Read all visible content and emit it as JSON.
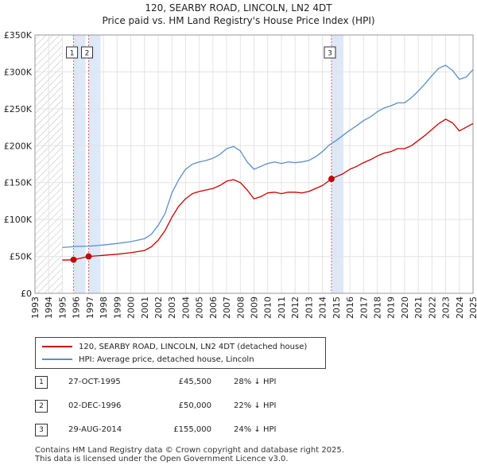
{
  "chart_data": {
    "type": "line",
    "title": "120, SEARBY ROAD, LINCOLN, LN2 4DT",
    "subtitle": "Price paid vs. HM Land Registry's House Price Index (HPI)",
    "x_range": [
      1993,
      2025
    ],
    "ylim": [
      0,
      350000
    ],
    "y_ticks": [
      0,
      50000,
      100000,
      150000,
      200000,
      250000,
      300000,
      350000
    ],
    "y_tick_labels": [
      "£0",
      "£50K",
      "£100K",
      "£150K",
      "£200K",
      "£250K",
      "£300K",
      "£350K"
    ],
    "x_ticks": [
      1993,
      1994,
      1995,
      1996,
      1997,
      1998,
      1999,
      2000,
      2001,
      2002,
      2003,
      2004,
      2005,
      2006,
      2007,
      2008,
      2009,
      2010,
      2011,
      2012,
      2013,
      2014,
      2015,
      2016,
      2017,
      2018,
      2019,
      2020,
      2021,
      2022,
      2023,
      2024,
      2025
    ],
    "grid": true,
    "hatched_before": 1995.0,
    "series": [
      {
        "name": "120, SEARBY ROAD, LINCOLN, LN2 4DT (detached house)",
        "color": "#cc0000",
        "x": [
          1995.0,
          1995.82,
          1996.92,
          1998.0,
          1999.0,
          2000.0,
          2001.0,
          2001.5,
          2002.0,
          2002.5,
          2003.0,
          2003.5,
          2004.0,
          2004.5,
          2005.0,
          2005.5,
          2006.0,
          2006.5,
          2007.0,
          2007.5,
          2008.0,
          2008.5,
          2009.0,
          2009.5,
          2010.0,
          2010.5,
          2011.0,
          2011.5,
          2012.0,
          2012.5,
          2013.0,
          2013.5,
          2014.0,
          2014.66,
          2015.0,
          2015.5,
          2016.0,
          2016.5,
          2017.0,
          2017.5,
          2018.0,
          2018.5,
          2019.0,
          2019.5,
          2020.0,
          2020.5,
          2021.0,
          2021.5,
          2022.0,
          2022.5,
          2023.0,
          2023.5,
          2024.0,
          2024.5,
          2025.0
        ],
        "values": [
          45000,
          45500,
          50000,
          51500,
          53000,
          55000,
          58000,
          63000,
          72000,
          85000,
          103000,
          118000,
          128000,
          135000,
          138000,
          140000,
          142000,
          146000,
          152000,
          154000,
          150000,
          140000,
          128000,
          131000,
          136000,
          137000,
          135000,
          137000,
          137000,
          136000,
          138000,
          142000,
          146000,
          155000,
          158000,
          162000,
          168000,
          172000,
          177000,
          181000,
          186000,
          190000,
          192000,
          196000,
          196000,
          200000,
          207000,
          214000,
          222000,
          230000,
          236000,
          231000,
          220000,
          225000,
          230000
        ]
      },
      {
        "name": "HPI: Average price, detached house, Lincoln",
        "color": "#5b8fcc",
        "x": [
          1995.0,
          1996.0,
          1997.0,
          1998.0,
          1999.0,
          2000.0,
          2001.0,
          2001.5,
          2002.0,
          2002.5,
          2003.0,
          2003.5,
          2004.0,
          2004.5,
          2005.0,
          2005.5,
          2006.0,
          2006.5,
          2007.0,
          2007.5,
          2008.0,
          2008.5,
          2009.0,
          2009.5,
          2010.0,
          2010.5,
          2011.0,
          2011.5,
          2012.0,
          2012.5,
          2013.0,
          2013.5,
          2014.0,
          2014.5,
          2015.0,
          2015.5,
          2016.0,
          2016.5,
          2017.0,
          2017.5,
          2018.0,
          2018.5,
          2019.0,
          2019.5,
          2020.0,
          2020.5,
          2021.0,
          2021.5,
          2022.0,
          2022.5,
          2023.0,
          2023.5,
          2024.0,
          2024.5,
          2025.0
        ],
        "values": [
          62000,
          63500,
          64000,
          65500,
          67500,
          70000,
          74000,
          80000,
          92000,
          108000,
          136000,
          154000,
          168000,
          175000,
          178000,
          180000,
          183000,
          188000,
          196000,
          199000,
          193000,
          178000,
          168000,
          172000,
          176000,
          178000,
          176000,
          178000,
          177000,
          178000,
          180000,
          185000,
          192000,
          201000,
          207000,
          214000,
          221000,
          227000,
          234000,
          239000,
          246000,
          251000,
          254000,
          258000,
          258000,
          265000,
          274000,
          284000,
          295000,
          305000,
          309000,
          302000,
          290000,
          293000,
          303000
        ]
      }
    ],
    "sales": [
      {
        "label": "1",
        "year": 1995.82,
        "price": 45500
      },
      {
        "label": "2",
        "year": 1996.92,
        "price": 50000
      },
      {
        "label": "3",
        "year": 2014.66,
        "price": 155000
      }
    ]
  },
  "legend": {
    "property_label": "120, SEARBY ROAD, LINCOLN, LN2 4DT (detached house)",
    "hpi_label": "HPI: Average price, detached house, Lincoln"
  },
  "transactions": [
    {
      "num": "1",
      "date": "27-OCT-1995",
      "price": "£45,500",
      "hpi": "28% ↓ HPI"
    },
    {
      "num": "2",
      "date": "02-DEC-1996",
      "price": "£50,000",
      "hpi": "22% ↓ HPI"
    },
    {
      "num": "3",
      "date": "29-AUG-2014",
      "price": "£155,000",
      "hpi": "24% ↓ HPI"
    }
  ],
  "footer": {
    "line1": "Contains HM Land Registry data © Crown copyright and database right 2025.",
    "line2": "This data is licensed under the Open Government Licence v3.0."
  },
  "colors": {
    "property": "#cc0000",
    "hpi": "#5b8fcc",
    "sale_band": "#dde8f8",
    "sale_line": "#e06060"
  }
}
